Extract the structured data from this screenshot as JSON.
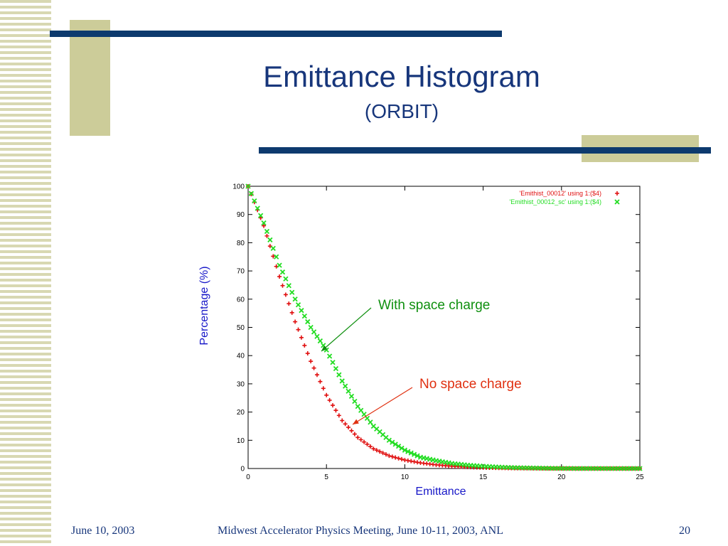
{
  "slide": {
    "title": "Emittance Histogram",
    "subtitle": "(ORBIT)",
    "annotation_sc": "With space charge",
    "annotation_nosc": "No space charge",
    "footer_date": "June 10, 2003",
    "footer_event": "Midwest Accelerator Physics Meeting, June 10-11, 2003, ANL",
    "page_number": "20"
  },
  "colors": {
    "title": "#17367b",
    "navy_bar": "#0d3a6e",
    "olive": "#cccc99",
    "series_nosc": "#e01010",
    "series_sc": "#22dd22",
    "annotation_sc": "#109010",
    "annotation_nosc": "#e03010"
  },
  "chart_data": {
    "type": "scatter",
    "xlabel": "Emittance",
    "ylabel": "Percentage (%)",
    "xlim": [
      0,
      25
    ],
    "ylim": [
      0,
      100
    ],
    "x_ticks": [
      "0",
      "5",
      "10",
      "15",
      "20",
      "25"
    ],
    "y_ticks": [
      "0",
      "10",
      "20",
      "30",
      "40",
      "50",
      "60",
      "70",
      "80",
      "90",
      "100"
    ],
    "grid": false,
    "legend_position": "top-right",
    "series": [
      {
        "name": "'Emithist_00012' using 1:($4)",
        "marker": "+",
        "x": [
          0,
          1,
          2,
          3,
          4,
          5,
          6,
          7,
          8,
          9,
          10,
          11,
          12,
          13,
          14,
          15,
          16,
          17,
          18,
          19,
          20,
          21,
          22,
          23,
          24,
          25
        ],
        "values": [
          100,
          86,
          68,
          52,
          38,
          26,
          17,
          11,
          7,
          4.5,
          3,
          2,
          1.3,
          0.8,
          0.5,
          0.3,
          0.2,
          0.1,
          0.05,
          0,
          0,
          0,
          0,
          0,
          0,
          0
        ]
      },
      {
        "name": "'Emithist_00012_sc' using 1:($4)",
        "marker": "x",
        "x": [
          0,
          1,
          2,
          3,
          4,
          5,
          6,
          7,
          8,
          9,
          10,
          11,
          12,
          13,
          14,
          15,
          16,
          17,
          18,
          19,
          20,
          21,
          22,
          23,
          24,
          25
        ],
        "values": [
          100,
          87,
          72,
          60,
          50,
          42,
          31,
          22,
          15,
          10,
          6.5,
          4,
          2.8,
          1.8,
          1.2,
          0.8,
          0.5,
          0.3,
          0.2,
          0.1,
          0.05,
          0,
          0,
          0,
          0,
          0
        ]
      }
    ]
  }
}
